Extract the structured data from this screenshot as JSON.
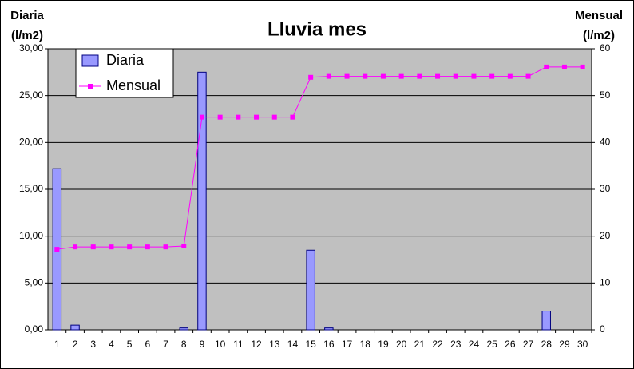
{
  "chart_data": {
    "type": "bar_line",
    "title": "Lluvia mes",
    "y_label": "Diaria",
    "y_label_unit": "(l/m2)",
    "y2_label": "Mensual",
    "y2_label_unit": "(l/m2)",
    "categories": [
      "1",
      "2",
      "3",
      "4",
      "5",
      "6",
      "7",
      "8",
      "9",
      "10",
      "11",
      "12",
      "13",
      "14",
      "15",
      "16",
      "17",
      "18",
      "19",
      "20",
      "21",
      "22",
      "23",
      "24",
      "25",
      "26",
      "27",
      "28",
      "29",
      "30"
    ],
    "series": [
      {
        "name": "Diaria",
        "type": "bar",
        "color": "#9999ff",
        "axis": "y",
        "values": [
          17.2,
          0.5,
          0,
          0,
          0,
          0,
          0,
          0.2,
          27.5,
          0,
          0,
          0,
          0,
          0,
          8.5,
          0.2,
          0,
          0,
          0,
          0,
          0,
          0,
          0,
          0,
          0,
          0,
          0,
          2.0,
          0,
          0
        ]
      },
      {
        "name": "Mensual",
        "type": "line",
        "color": "#ff00ff",
        "axis": "y2",
        "values": [
          17.2,
          17.7,
          17.7,
          17.7,
          17.7,
          17.7,
          17.7,
          17.9,
          45.4,
          45.4,
          45.4,
          45.4,
          45.4,
          45.4,
          53.9,
          54.1,
          54.1,
          54.1,
          54.1,
          54.1,
          54.1,
          54.1,
          54.1,
          54.1,
          54.1,
          54.1,
          54.1,
          56.1,
          56.1,
          56.1
        ]
      }
    ],
    "ylim": [
      0,
      30
    ],
    "yticks": [
      {
        "value": 0,
        "label": "0,00"
      },
      {
        "value": 5,
        "label": "5,00"
      },
      {
        "value": 10,
        "label": "10,00"
      },
      {
        "value": 15,
        "label": "15,00"
      },
      {
        "value": 20,
        "label": "20,00"
      },
      {
        "value": 25,
        "label": "25,00"
      },
      {
        "value": 30,
        "label": "30,00"
      }
    ],
    "y2lim": [
      0,
      60
    ],
    "y2ticks": [
      0,
      10,
      20,
      30,
      40,
      50,
      60
    ],
    "grid": true,
    "legend": "upper left",
    "plot_background": "#c0c0c0"
  }
}
